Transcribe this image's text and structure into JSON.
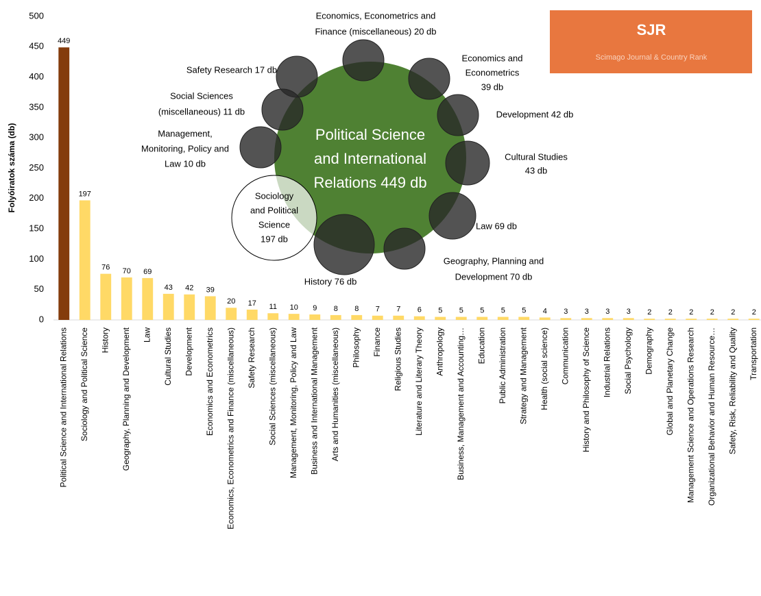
{
  "chart_data": {
    "type": "bar",
    "y_label": "Folyóiratok száma (db)",
    "categories": [
      "Political Science and International Relations",
      "Sociology and Political Science",
      "History",
      "Geography, Planning and Development",
      "Law",
      "Cultural Studies",
      "Development",
      "Economics and Econometrics",
      "Economics, Econometrics and Finance (miscellaneous)",
      "Safety Research",
      "Social Sciences (miscellaneous)",
      "Management, Monitoring, Policy and Law",
      "Business and International Management",
      "Arts and Humanities (miscellaneous)",
      "Philosophy",
      "Finance",
      "Religious Studies",
      "Literature and Literary Theory",
      "Anthropology",
      "Business, Management and Accounting…",
      "Education",
      "Public Administration",
      "Strategy and Management",
      "Health (social science)",
      "Communication",
      "History and Philosophy of Science",
      "Industrial Relations",
      "Social Psychology",
      "Demography",
      "Global and Planetary Change",
      "Management Science and Operations Research",
      "Organizational Behavior and Human Resource…",
      "Safety, Risk, Reliability and Quality",
      "Transportation"
    ],
    "values": [
      449,
      197,
      76,
      70,
      69,
      43,
      42,
      39,
      20,
      17,
      11,
      10,
      9,
      8,
      8,
      7,
      7,
      6,
      5,
      5,
      5,
      5,
      5,
      4,
      3,
      3,
      3,
      3,
      2,
      2,
      2,
      2,
      2,
      2
    ],
    "colors": [
      "#843c0c",
      "#ffd966"
    ],
    "ylim": [
      0,
      500
    ],
    "yticks": [
      0,
      50,
      100,
      150,
      200,
      250,
      300,
      350,
      400,
      450,
      500
    ],
    "grid": false
  },
  "bubbles": [
    {
      "lines": [
        "Political Science",
        "and International",
        "Relations 449 db"
      ]
    },
    {
      "lines": [
        "Sociology",
        "and Political",
        "Science",
        "197 db"
      ]
    },
    {
      "lines": [
        "History 76 db"
      ]
    },
    {
      "lines": [
        "Geography, Planning and",
        "Development 70 db"
      ]
    },
    {
      "lines": [
        "Law 69 db"
      ]
    },
    {
      "lines": [
        "Cultural Studies",
        "43 db"
      ]
    },
    {
      "lines": [
        "Development 42 db"
      ]
    },
    {
      "lines": [
        "Economics and",
        "Econometrics",
        "39 db"
      ]
    },
    {
      "lines": [
        "Economics, Econometrics and",
        "Finance (miscellaneous) 20 db"
      ]
    },
    {
      "lines": [
        "Safety Research 17 db"
      ]
    },
    {
      "lines": [
        "Social Sciences",
        "(miscellaneous) 11 db"
      ]
    },
    {
      "lines": [
        "Management,",
        "Monitoring, Policy and",
        "Law 10 db"
      ]
    }
  ],
  "logo": {
    "title": "SJR",
    "subtitle": "Scimago Journal & Country Rank"
  }
}
